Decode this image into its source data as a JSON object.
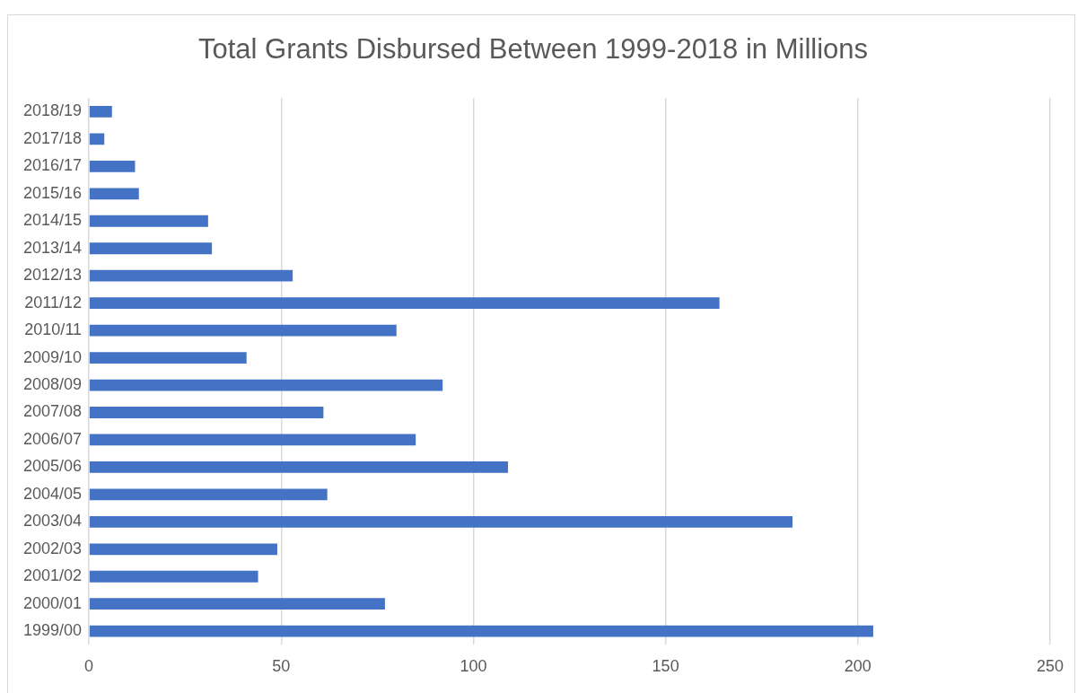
{
  "chart_data": {
    "type": "bar",
    "orientation": "horizontal",
    "title": "Total Grants Disbursed Between 1999-2018 in Millions",
    "categories": [
      "2018/19",
      "2017/18",
      "2016/17",
      "2015/16",
      "2014/15",
      "2013/14",
      "2012/13",
      "2011/12",
      "2010/11",
      "2009/10",
      "2008/09",
      "2007/08",
      "2006/07",
      "2005/06",
      "2004/05",
      "2003/04",
      "2002/03",
      "2001/02",
      "2000/01",
      "1999/00"
    ],
    "values": [
      6,
      4,
      12,
      13,
      31,
      32,
      53,
      164,
      80,
      41,
      92,
      61,
      85,
      109,
      62,
      183,
      49,
      44,
      77,
      204
    ],
    "color": "#4472c4",
    "xlim": [
      0,
      250
    ],
    "xticks": [
      0,
      50,
      100,
      150,
      200,
      250
    ],
    "grid": "x"
  }
}
